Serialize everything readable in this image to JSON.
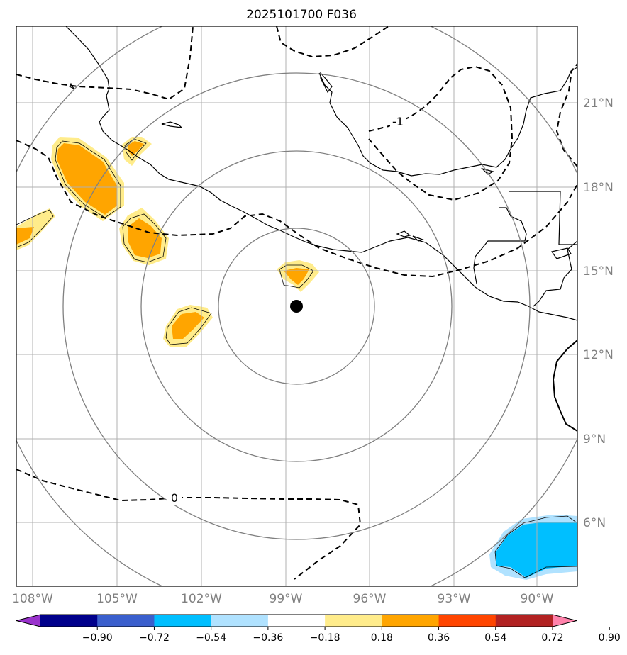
{
  "title": "2025101700 F036",
  "lon_ticks": [
    "108°W",
    "105°W",
    "102°W",
    "99°W",
    "96°W",
    "93°W",
    "90°W"
  ],
  "lat_ticks": [
    "21°N",
    "18°N",
    "15°N",
    "12°N",
    "9°N",
    "6°N"
  ],
  "contour_labels": {
    "minus_one": "-1",
    "zero": "0"
  },
  "colorbar": {
    "ticks": [
      "−0.90",
      "−0.72",
      "−0.54",
      "−0.36",
      "−0.18",
      "0.18",
      "0.36",
      "0.54",
      "0.72",
      "0.90"
    ],
    "colors": [
      "#9932cc",
      "#00008b",
      "#3a5fcd",
      "#00bfff",
      "#b0e2ff",
      "#ffffff",
      "#ffec8b",
      "#ffa500",
      "#ff4500",
      "#b22222",
      "#ff82ab"
    ]
  },
  "center_marker": "storm-center",
  "colors": {
    "grid": "#b0b0b0",
    "range_rings": "#808080",
    "positive_light": "#ffec8b",
    "positive_mid": "#ffa500",
    "negative_light": "#b0e2ff",
    "negative_mid": "#00bfff"
  }
}
